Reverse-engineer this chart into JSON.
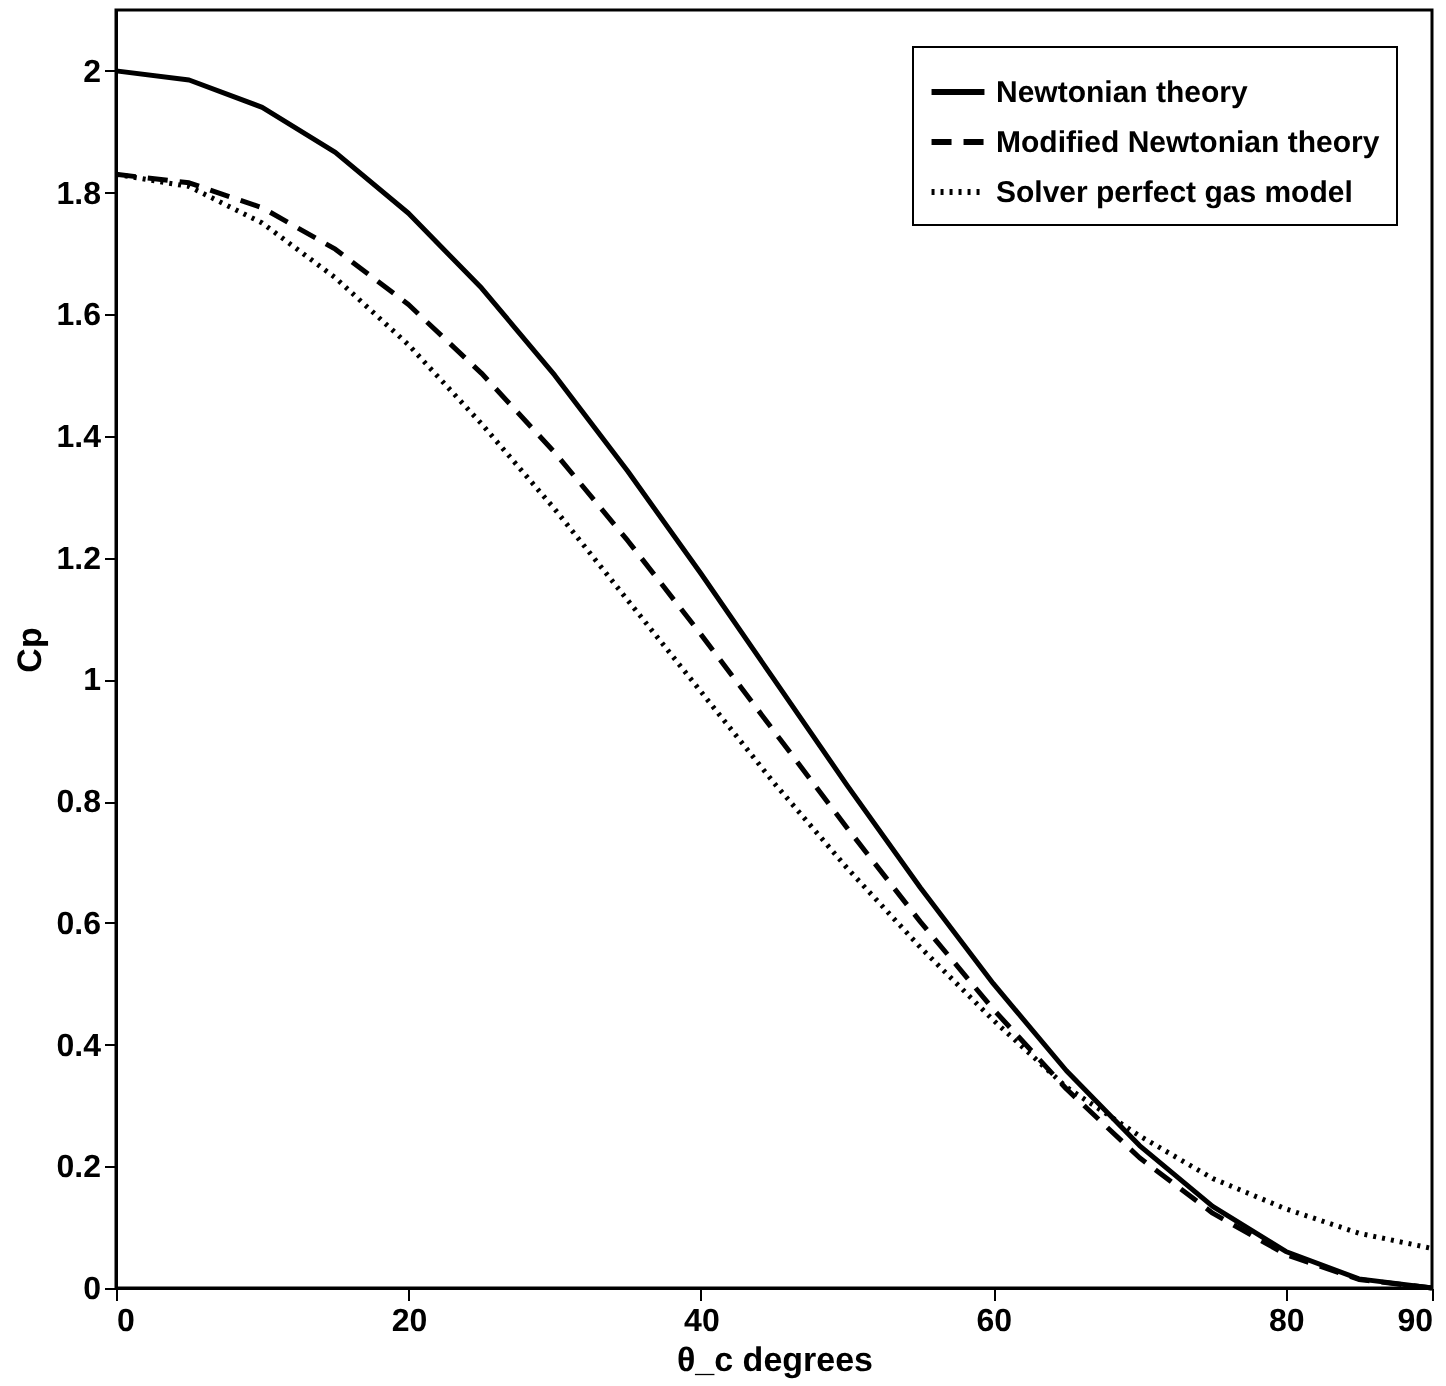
{
  "chart_data": {
    "type": "line",
    "xlabel": "θ_c degrees",
    "ylabel": "Cp",
    "x": [
      0,
      5,
      10,
      15,
      20,
      25,
      30,
      35,
      40,
      45,
      50,
      55,
      60,
      65,
      70,
      75,
      80,
      85,
      90
    ],
    "series": [
      {
        "name": "Newtonian theory",
        "color": "#000000",
        "line_style": "solid",
        "values": [
          2,
          1.985,
          1.94,
          1.866,
          1.766,
          1.643,
          1.5,
          1.342,
          1.174,
          1.0,
          0.826,
          0.658,
          0.5,
          0.357,
          0.234,
          0.134,
          0.06,
          0.015,
          0
        ]
      },
      {
        "name": "Modified Newtonian theory",
        "color": "#000000",
        "line_style": "dashed",
        "values": [
          1.83,
          1.816,
          1.775,
          1.707,
          1.616,
          1.503,
          1.373,
          1.228,
          1.074,
          0.915,
          0.756,
          0.602,
          0.458,
          0.327,
          0.214,
          0.123,
          0.055,
          0.014,
          0
        ]
      },
      {
        "name": "Solver perfect gas model",
        "color": "#000000",
        "line_style": "dotted",
        "values": [
          1.83,
          1.81,
          1.75,
          1.66,
          1.55,
          1.42,
          1.28,
          1.13,
          0.98,
          0.83,
          0.69,
          0.56,
          0.44,
          0.33,
          0.25,
          0.18,
          0.13,
          0.09,
          0.065
        ]
      }
    ],
    "xlim": [
      0,
      90
    ],
    "xticks": [
      0,
      20,
      40,
      60,
      80,
      90
    ],
    "ylim": [
      0,
      2.1
    ],
    "yticks": [
      0,
      0.2,
      0.4,
      0.6,
      0.8,
      1,
      1.2,
      1.4,
      1.6,
      1.8,
      2
    ],
    "grid": false,
    "legend": "top right",
    "marker": "none"
  }
}
